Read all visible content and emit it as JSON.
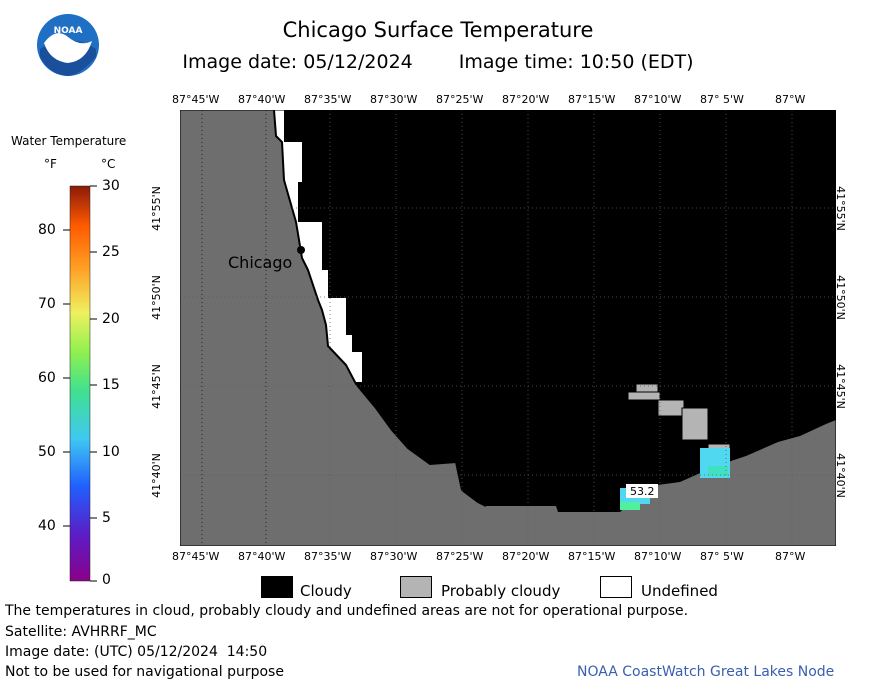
{
  "header": {
    "title": "Chicago Surface Temperature",
    "image_date": "Image date: 05/12/2024",
    "image_time": "Image time: 10:50 (EDT)",
    "logo_text": "NOAA"
  },
  "map": {
    "lon_labels": [
      "87°45'W",
      "87°40'W",
      "87°35'W",
      "87°30'W",
      "87°25'W",
      "87°20'W",
      "87°15'W",
      "87°10'W",
      "87° 5'W",
      "87°W"
    ],
    "lat_labels": [
      "41°55'N",
      "41°50'N",
      "41°45'N",
      "41°40'N"
    ],
    "city_label": "Chicago",
    "temp_annotation": "53.2",
    "grid": true
  },
  "temperature_scale": {
    "title": "Water Temperature",
    "unit_f": "°F",
    "unit_c": "°C",
    "f_ticks": [
      "80",
      "70",
      "60",
      "50",
      "40"
    ],
    "c_ticks": [
      "30",
      "25",
      "20",
      "15",
      "10",
      "5",
      "0"
    ]
  },
  "key": {
    "cloudy": "Cloudy",
    "probably_cloudy": "Probably cloudy",
    "undefined": "Undefined",
    "colors": {
      "cloudy": "#000000",
      "probably_cloudy": "#b4b4b4",
      "undefined": "#ffffff",
      "land": "#6e6e6e"
    }
  },
  "footer": {
    "disclaimer": "The temperatures in cloud, probably cloudy and undefined areas are not for operational purpose.",
    "satellite": "Satellite: AVHRRF_MC",
    "utc_date": "Image date: (UTC) 05/12/2024  14:50",
    "nav_warning": "Not to be used for navigational purpose",
    "credit": "NOAA CoastWatch Great Lakes Node"
  }
}
